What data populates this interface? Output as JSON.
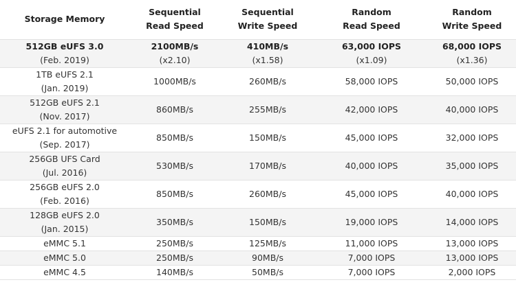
{
  "table": {
    "header": [
      [
        "Storage Memory"
      ],
      [
        "Sequential",
        "Read Speed"
      ],
      [
        "Sequential",
        "Write Speed"
      ],
      [
        "Random",
        "Read Speed"
      ],
      [
        "Random",
        "Write Speed"
      ]
    ],
    "rows": [
      [
        [
          "512GB eUFS 3.0",
          "(Feb. 2019)"
        ],
        [
          "2100MB/s",
          "(x2.10)"
        ],
        [
          "410MB/s",
          "(x1.58)"
        ],
        [
          "63,000 IOPS",
          "(x1.09)"
        ],
        [
          "68,000 IOPS",
          "(x1.36)"
        ]
      ],
      [
        [
          "1TB eUFS 2.1",
          "(Jan. 2019)"
        ],
        [
          "1000MB/s"
        ],
        [
          "260MB/s"
        ],
        [
          "58,000 IOPS"
        ],
        [
          "50,000 IOPS"
        ]
      ],
      [
        [
          "512GB eUFS 2.1",
          "(Nov. 2017)"
        ],
        [
          "860MB/s"
        ],
        [
          "255MB/s"
        ],
        [
          "42,000 IOPS"
        ],
        [
          "40,000 IOPS"
        ]
      ],
      [
        [
          "eUFS 2.1 for automotive",
          "(Sep. 2017)"
        ],
        [
          "850MB/s"
        ],
        [
          "150MB/s"
        ],
        [
          "45,000 IOPS"
        ],
        [
          "32,000 IOPS"
        ]
      ],
      [
        [
          "256GB UFS Card",
          "(Jul. 2016)"
        ],
        [
          "530MB/s"
        ],
        [
          "170MB/s"
        ],
        [
          "40,000 IOPS"
        ],
        [
          "35,000 IOPS"
        ]
      ],
      [
        [
          "256GB eUFS 2.0",
          "(Feb. 2016)"
        ],
        [
          "850MB/s"
        ],
        [
          "260MB/s"
        ],
        [
          "45,000 IOPS"
        ],
        [
          "40,000 IOPS"
        ]
      ],
      [
        [
          "128GB eUFS 2.0",
          "(Jan. 2015)"
        ],
        [
          "350MB/s"
        ],
        [
          "150MB/s"
        ],
        [
          "19,000 IOPS"
        ],
        [
          "14,000 IOPS"
        ]
      ],
      [
        [
          "eMMC 5.1"
        ],
        [
          "250MB/s"
        ],
        [
          "125MB/s"
        ],
        [
          "11,000 IOPS"
        ],
        [
          "13,000 IOPS"
        ]
      ],
      [
        [
          "eMMC 5.0"
        ],
        [
          "250MB/s"
        ],
        [
          "90MB/s"
        ],
        [
          "7,000 IOPS"
        ],
        [
          "13,000 IOPS"
        ]
      ],
      [
        [
          "eMMC 4.5"
        ],
        [
          "140MB/s"
        ],
        [
          "50MB/s"
        ],
        [
          "7,000 IOPS"
        ],
        [
          "2,000 IOPS"
        ]
      ]
    ]
  }
}
